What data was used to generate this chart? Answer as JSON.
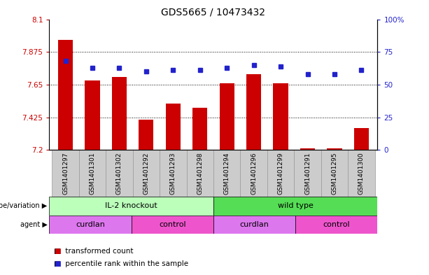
{
  "title": "GDS5665 / 10473432",
  "samples": [
    "GSM1401297",
    "GSM1401301",
    "GSM1401302",
    "GSM1401292",
    "GSM1401293",
    "GSM1401298",
    "GSM1401294",
    "GSM1401296",
    "GSM1401299",
    "GSM1401291",
    "GSM1401295",
    "GSM1401300"
  ],
  "bar_values": [
    7.96,
    7.68,
    7.7,
    7.41,
    7.52,
    7.49,
    7.66,
    7.72,
    7.66,
    7.21,
    7.21,
    7.35
  ],
  "percentile_values": [
    68,
    63,
    63,
    60,
    61,
    61,
    63,
    65,
    64,
    58,
    58,
    61
  ],
  "ylim_left": [
    7.2,
    8.1
  ],
  "ylim_right": [
    0,
    100
  ],
  "yticks_left": [
    7.2,
    7.425,
    7.65,
    7.875,
    8.1
  ],
  "yticks_right": [
    0,
    25,
    50,
    75,
    100
  ],
  "ytick_labels_left": [
    "7.2",
    "7.425",
    "7.65",
    "7.875",
    "8.1"
  ],
  "ytick_labels_right": [
    "0",
    "25",
    "50",
    "75",
    "100%"
  ],
  "hlines": [
    7.875,
    7.65,
    7.425
  ],
  "bar_color": "#cc0000",
  "dot_color": "#2222cc",
  "bar_bottom": 7.2,
  "genotype_groups": [
    {
      "label": "IL-2 knockout",
      "start": 0,
      "end": 6,
      "color": "#bbffbb"
    },
    {
      "label": "wild type",
      "start": 6,
      "end": 12,
      "color": "#55dd55"
    }
  ],
  "agent_groups": [
    {
      "label": "curdlan",
      "start": 0,
      "end": 3,
      "color": "#dd77ee"
    },
    {
      "label": "control",
      "start": 3,
      "end": 6,
      "color": "#ee55cc"
    },
    {
      "label": "curdlan",
      "start": 6,
      "end": 9,
      "color": "#dd77ee"
    },
    {
      "label": "control",
      "start": 9,
      "end": 12,
      "color": "#ee55cc"
    }
  ],
  "legend_items": [
    {
      "label": "transformed count",
      "color": "#cc0000"
    },
    {
      "label": "percentile rank within the sample",
      "color": "#2222cc"
    }
  ],
  "left_axis_color": "#cc0000",
  "right_axis_color": "#2222cc",
  "title_fontsize": 10,
  "tick_fontsize": 7.5,
  "xtick_fontsize": 6.5,
  "label_fontsize": 8,
  "legend_fontsize": 7.5,
  "xticklabel_bg": "#cccccc",
  "xticklabel_border": "#999999"
}
